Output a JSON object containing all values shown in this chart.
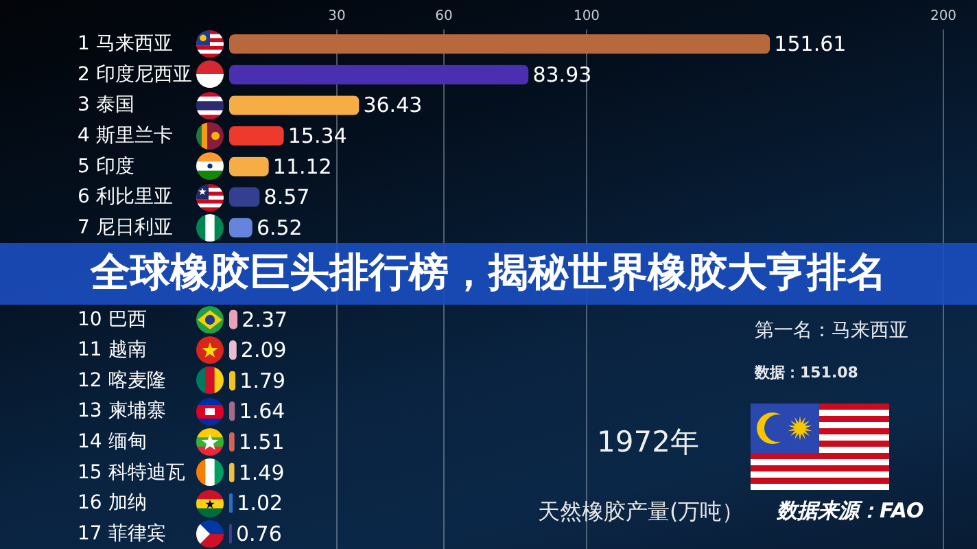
{
  "chart_data": {
    "type": "bar",
    "orientation": "horizontal",
    "title": "全球橡胶巨头排行榜，揭秘世界橡胶大亨排名",
    "categories": [
      "1 马来西亚",
      "2 印度尼西亚",
      "3 泰国",
      "4 斯里兰卡",
      "5 印度",
      "6 利比里亚",
      "7 尼日利亚",
      null,
      null,
      "10 巴西",
      "11 越南",
      "12 喀麦隆",
      "13 柬埔寨",
      "14 缅甸",
      "15 科特迪瓦",
      "16 加纳",
      "17 菲律宾"
    ],
    "values": [
      151.61,
      83.93,
      36.43,
      15.34,
      11.12,
      8.57,
      6.52,
      null,
      null,
      2.37,
      2.09,
      1.79,
      1.64,
      1.51,
      1.49,
      1.02,
      0.76
    ],
    "colors": [
      "#b8683d",
      "#4a2fb0",
      "#f7ad45",
      "#ee3a2c",
      "#f7ad45",
      "#34408f",
      "#6585dc",
      null,
      null,
      "#e9a3b5",
      "#e9bdd0",
      "#f2c31f",
      "#a56a8a",
      "#d7644e",
      "#efc03a",
      "#2c6dc8",
      "#4a3a9c"
    ],
    "xlim": [
      0,
      200
    ],
    "xticks": [
      30,
      60,
      100,
      200
    ],
    "grid": "x",
    "data_labels": true,
    "xlabel": "天然橡胶产量(万吨）",
    "annotations": [
      "第一名：马来西亚",
      "数据：151.08",
      "1972年",
      "数据来源：FAO"
    ]
  }
}
